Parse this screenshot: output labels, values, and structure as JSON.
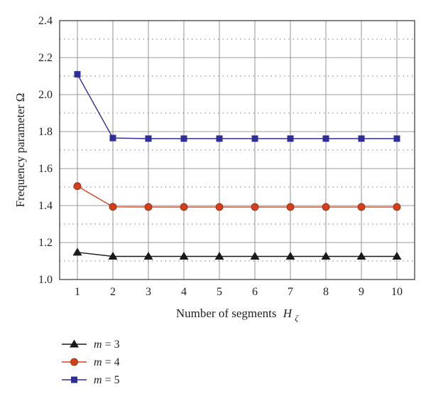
{
  "chart_data": {
    "type": "line",
    "title": "",
    "xlabel": "Number of segments",
    "xlabel_symbol": "H",
    "xlabel_subscript": "ζ",
    "ylabel": "Frequency parameter Ω",
    "x": [
      1,
      2,
      3,
      4,
      5,
      6,
      7,
      8,
      9,
      10
    ],
    "xticks": [
      "1",
      "2",
      "3",
      "4",
      "5",
      "6",
      "7",
      "8",
      "9",
      "10"
    ],
    "ylim": [
      1.0,
      2.4
    ],
    "yticks": [
      "1.0",
      "1.2",
      "1.4",
      "1.6",
      "1.8",
      "2.0",
      "2.2",
      "2.4"
    ],
    "grid": "major solid, minor dotted",
    "legend_position": "bottom-left, below plot",
    "series": [
      {
        "name_var": "m",
        "name_eq": " = ",
        "name_val": "3",
        "color": "#1a1a1a",
        "marker": "triangle",
        "values": [
          1.147,
          1.125,
          1.125,
          1.125,
          1.125,
          1.125,
          1.125,
          1.125,
          1.125,
          1.125
        ]
      },
      {
        "name_var": "m",
        "name_eq": " = ",
        "name_val": "4",
        "color": "#d2401a",
        "marker": "circle",
        "values": [
          1.505,
          1.393,
          1.392,
          1.392,
          1.392,
          1.392,
          1.392,
          1.392,
          1.392,
          1.392
        ]
      },
      {
        "name_var": "m",
        "name_eq": " = ",
        "name_val": "5",
        "color": "#2e2e96",
        "marker": "square",
        "values": [
          2.11,
          1.765,
          1.762,
          1.762,
          1.762,
          1.762,
          1.762,
          1.762,
          1.762,
          1.762
        ]
      }
    ]
  }
}
